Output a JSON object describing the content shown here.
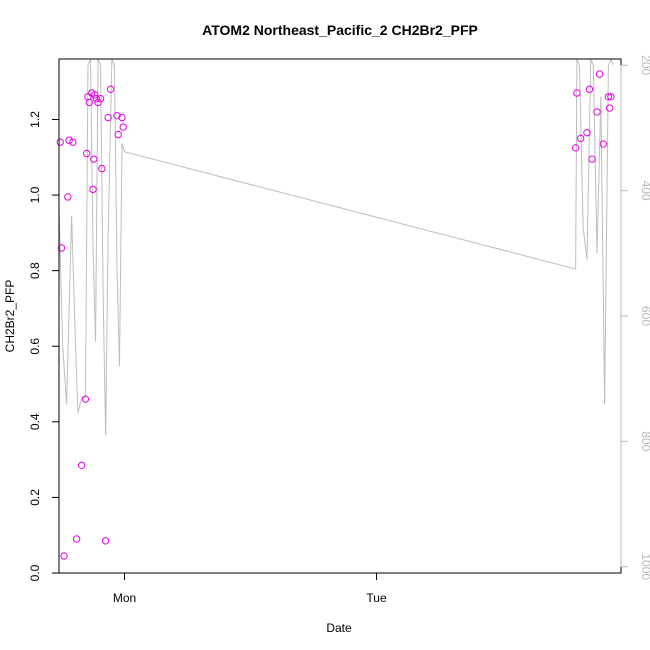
{
  "chart_data": {
    "type": "scatter",
    "title": "ATOM2 Northeast_Pacific_2 CH2Br2_PFP",
    "xlabel": "Date",
    "ylabel": "CH2Br2_PFP",
    "x_ticks": [
      "Mon",
      "Tue"
    ],
    "y_ticks": [
      "0.0",
      "0.2",
      "0.4",
      "0.6",
      "0.8",
      "1.0",
      "1.2"
    ],
    "y_ticks_values": [
      0.0,
      0.2,
      0.4,
      0.6,
      0.8,
      1.0,
      1.2
    ],
    "ylim": [
      0.0,
      1.36
    ],
    "xlim_hours": [
      -2.6,
      19.7
    ],
    "x_tick_hours": [
      0,
      10
    ],
    "right_axis": {
      "ticks": [
        "200",
        "400",
        "600",
        "800",
        "1000"
      ],
      "tick_values": [
        200,
        400,
        600,
        800,
        1000
      ],
      "ylim": [
        1010,
        190
      ],
      "color": "#b8b8b8"
    },
    "points_color": "#e800e8",
    "line_color": "#bdbdbd",
    "series": [
      {
        "kind": "points",
        "points": [
          {
            "x": -2.55,
            "y": 1.14
          },
          {
            "x": -2.5,
            "y": 0.86
          },
          {
            "x": -2.4,
            "y": 0.045
          },
          {
            "x": -2.25,
            "y": 0.995
          },
          {
            "x": -2.2,
            "y": 1.145
          },
          {
            "x": -2.05,
            "y": 1.14
          },
          {
            "x": -1.9,
            "y": 0.09
          },
          {
            "x": -1.7,
            "y": 0.285
          },
          {
            "x": -1.55,
            "y": 0.46
          },
          {
            "x": -1.5,
            "y": 1.11
          },
          {
            "x": -1.45,
            "y": 1.26
          },
          {
            "x": -1.4,
            "y": 1.245
          },
          {
            "x": -1.3,
            "y": 1.27
          },
          {
            "x": -1.25,
            "y": 1.015
          },
          {
            "x": -1.22,
            "y": 1.095
          },
          {
            "x": -1.18,
            "y": 1.265
          },
          {
            "x": -1.12,
            "y": 1.255
          },
          {
            "x": -1.05,
            "y": 1.245
          },
          {
            "x": -0.95,
            "y": 1.255
          },
          {
            "x": -0.9,
            "y": 1.07
          },
          {
            "x": -0.75,
            "y": 0.085
          },
          {
            "x": -0.65,
            "y": 1.205
          },
          {
            "x": -0.55,
            "y": 1.28
          },
          {
            "x": -0.3,
            "y": 1.21
          },
          {
            "x": -0.25,
            "y": 1.16
          },
          {
            "x": -0.1,
            "y": 1.205
          },
          {
            "x": -0.05,
            "y": 1.18
          },
          {
            "x": 17.9,
            "y": 1.125
          },
          {
            "x": 17.95,
            "y": 1.27
          },
          {
            "x": 18.1,
            "y": 1.15
          },
          {
            "x": 18.35,
            "y": 1.165
          },
          {
            "x": 18.45,
            "y": 1.28
          },
          {
            "x": 18.55,
            "y": 1.095
          },
          {
            "x": 18.75,
            "y": 1.22
          },
          {
            "x": 18.85,
            "y": 1.32
          },
          {
            "x": 19.0,
            "y": 1.135
          },
          {
            "x": 19.2,
            "y": 1.26
          },
          {
            "x": 19.25,
            "y": 1.23
          },
          {
            "x": 19.3,
            "y": 1.26
          }
        ]
      },
      {
        "kind": "line",
        "axis": "right",
        "points": [
          {
            "x": -2.6,
            "y": 425
          },
          {
            "x": -2.45,
            "y": 650
          },
          {
            "x": -2.3,
            "y": 740
          },
          {
            "x": -2.1,
            "y": 440
          },
          {
            "x": -1.95,
            "y": 640
          },
          {
            "x": -1.85,
            "y": 755
          },
          {
            "x": -1.7,
            "y": 730
          },
          {
            "x": -1.55,
            "y": 730
          },
          {
            "x": -1.45,
            "y": 200
          },
          {
            "x": -1.35,
            "y": 190
          },
          {
            "x": -1.25,
            "y": 490
          },
          {
            "x": -1.15,
            "y": 640
          },
          {
            "x": -1.05,
            "y": 190
          },
          {
            "x": -0.95,
            "y": 200
          },
          {
            "x": -0.85,
            "y": 560
          },
          {
            "x": -0.75,
            "y": 790
          },
          {
            "x": -0.65,
            "y": 470
          },
          {
            "x": -0.5,
            "y": 190
          },
          {
            "x": -0.4,
            "y": 200
          },
          {
            "x": -0.3,
            "y": 520
          },
          {
            "x": -0.2,
            "y": 680
          },
          {
            "x": -0.1,
            "y": 325
          },
          {
            "x": 0.0,
            "y": 338
          },
          {
            "x": 17.9,
            "y": 525
          },
          {
            "x": 17.95,
            "y": 190
          },
          {
            "x": 18.05,
            "y": 200
          },
          {
            "x": 18.2,
            "y": 460
          },
          {
            "x": 18.35,
            "y": 510
          },
          {
            "x": 18.5,
            "y": 190
          },
          {
            "x": 18.6,
            "y": 200
          },
          {
            "x": 18.75,
            "y": 500
          },
          {
            "x": 18.9,
            "y": 250
          },
          {
            "x": 19.05,
            "y": 740
          },
          {
            "x": 19.2,
            "y": 200
          },
          {
            "x": 19.3,
            "y": 190
          },
          {
            "x": 19.4,
            "y": 200
          }
        ]
      }
    ]
  }
}
